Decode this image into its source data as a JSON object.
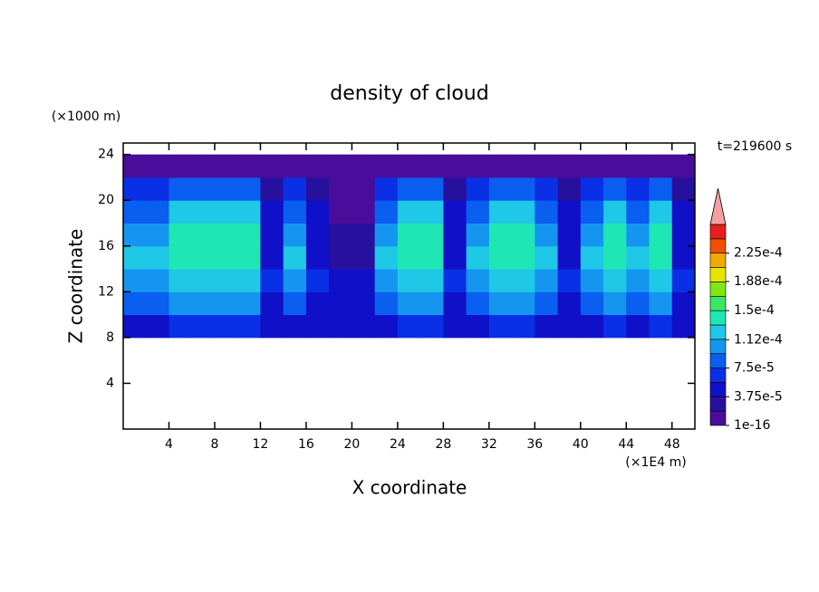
{
  "chart_data": {
    "type": "contour",
    "title": "density of cloud",
    "y_unit": "(×1000 m)",
    "ylabel": "Z coordinate",
    "xlabel": "X coordinate",
    "x_unit": "(×1E4 m)",
    "annotation": "t=219600 s",
    "xlim": [
      0,
      50
    ],
    "ylim": [
      0,
      25
    ],
    "xticks": [
      4,
      8,
      12,
      16,
      20,
      24,
      28,
      32,
      36,
      40,
      44,
      48
    ],
    "yticks": [
      4,
      8,
      12,
      16,
      20,
      24
    ],
    "x_edges": [
      0,
      2,
      4,
      6,
      8,
      10,
      12,
      14,
      16,
      18,
      20,
      22,
      24,
      26,
      28,
      30,
      32,
      34,
      36,
      38,
      40,
      42,
      44,
      46,
      48,
      50
    ],
    "y_edges": [
      8,
      10,
      12,
      14,
      16,
      18,
      20,
      22,
      24
    ],
    "z": [
      [
        5e-05,
        5e-05,
        6e-05,
        6e-05,
        6e-05,
        6e-05,
        4e-05,
        5e-05,
        4e-05,
        4e-05,
        4e-05,
        5e-05,
        6e-05,
        6e-05,
        4e-05,
        5e-05,
        6e-05,
        6e-05,
        5e-05,
        4e-05,
        5e-05,
        6e-05,
        5e-05,
        6e-05,
        4e-05
      ],
      [
        9e-05,
        9e-05,
        0.0001,
        0.0001,
        0.0001,
        0.0001,
        5e-05,
        9e-05,
        5e-05,
        5e-05,
        5e-05,
        9e-05,
        0.0001,
        0.0001,
        5e-05,
        9e-05,
        0.0001,
        0.0001,
        9e-05,
        5e-05,
        9e-05,
        0.0001,
        9e-05,
        0.0001,
        5e-05
      ],
      [
        0.00011,
        0.00011,
        0.00013,
        0.00013,
        0.00013,
        0.00013,
        6e-05,
        0.00011,
        6e-05,
        4e-05,
        4e-05,
        0.00011,
        0.00013,
        0.00013,
        6e-05,
        0.00011,
        0.00013,
        0.00013,
        0.00011,
        6e-05,
        0.00011,
        0.00013,
        0.00011,
        0.00013,
        6e-05
      ],
      [
        0.000115,
        0.000115,
        0.00014,
        0.00014,
        0.00014,
        0.00014,
        5e-05,
        0.000115,
        5e-05,
        3e-05,
        3e-05,
        0.000115,
        0.00014,
        0.00014,
        5e-05,
        0.000115,
        0.00014,
        0.00014,
        0.000115,
        5e-05,
        0.000115,
        0.00014,
        0.000115,
        0.00014,
        5e-05
      ],
      [
        0.00011,
        0.00011,
        0.000135,
        0.000135,
        0.000135,
        0.000135,
        4e-05,
        0.00011,
        4e-05,
        2e-05,
        2e-05,
        0.00011,
        0.000135,
        0.000135,
        4e-05,
        0.00011,
        0.000135,
        0.000135,
        0.00011,
        4e-05,
        0.00011,
        0.000135,
        0.00011,
        0.000135,
        4e-05
      ],
      [
        9e-05,
        9e-05,
        0.00012,
        0.00012,
        0.00012,
        0.00012,
        4e-05,
        9e-05,
        4e-05,
        1e-05,
        1e-05,
        9e-05,
        0.00012,
        0.00012,
        4e-05,
        9e-05,
        0.00012,
        0.00012,
        9e-05,
        4e-05,
        9e-05,
        0.00012,
        9e-05,
        0.00012,
        4e-05
      ],
      [
        6e-05,
        6e-05,
        9e-05,
        9e-05,
        9e-05,
        9e-05,
        3e-05,
        6e-05,
        3e-05,
        1e-05,
        1e-05,
        6e-05,
        9e-05,
        9e-05,
        3e-05,
        6e-05,
        9e-05,
        9e-05,
        6e-05,
        3e-05,
        6e-05,
        9e-05,
        6e-05,
        9e-05,
        3e-05
      ],
      [
        1e-05,
        1e-05,
        1e-05,
        1e-05,
        1e-05,
        1e-05,
        1e-05,
        1e-05,
        1e-05,
        1e-05,
        1e-05,
        1e-05,
        1e-05,
        1e-05,
        1e-05,
        1e-05,
        1e-05,
        1e-05,
        1e-05,
        1e-05,
        1e-05,
        1e-05,
        1e-05,
        1e-05,
        1e-05
      ]
    ],
    "levels": [
      1e-16,
      1.875e-05,
      3.75e-05,
      5.625e-05,
      7.5e-05,
      9.375e-05,
      0.0001125,
      0.00013125,
      0.00015,
      0.00016875,
      0.0001875,
      0.00020625,
      0.000225,
      0.00024375,
      0.0002625
    ],
    "colors": [
      "#4a0c9a",
      "#28109e",
      "#1010c8",
      "#0a30e6",
      "#0a5ef0",
      "#1496f0",
      "#1ec8e6",
      "#1ee6b4",
      "#3ce664",
      "#82e614",
      "#e6e600",
      "#f0aa00",
      "#f05000",
      "#e61e1e"
    ],
    "overflow_color": "#f4a0a0",
    "colorbar_ticks": [
      {
        "value": 1e-16,
        "label": "1e-16"
      },
      {
        "value": 3.75e-05,
        "label": "3.75e-5"
      },
      {
        "value": 7.5e-05,
        "label": "7.5e-5"
      },
      {
        "value": 0.000112,
        "label": "1.12e-4"
      },
      {
        "value": 0.00015,
        "label": "1.5e-4"
      },
      {
        "value": 0.000188,
        "label": "1.88e-4"
      },
      {
        "value": 0.000225,
        "label": "2.25e-4"
      }
    ]
  }
}
